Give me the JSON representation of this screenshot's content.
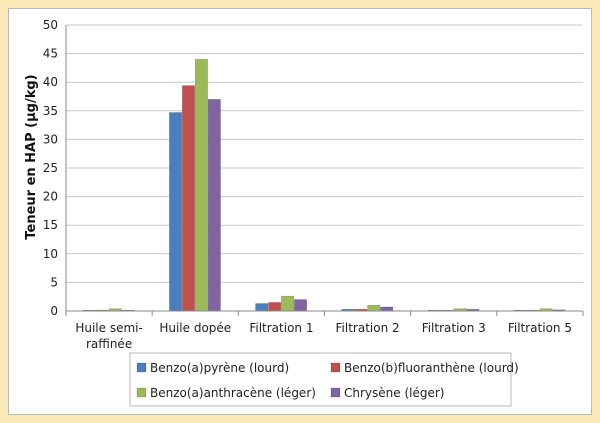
{
  "chart_data": {
    "type": "bar",
    "title": "",
    "xlabel": "",
    "ylabel": "Teneur en HAP (µg/kg)",
    "ylim": [
      0,
      50
    ],
    "yticks": [
      0,
      5,
      10,
      15,
      20,
      25,
      30,
      35,
      40,
      45,
      50
    ],
    "grid": true,
    "legend_position": "bottom",
    "categories": [
      [
        "Huile semi-",
        "raffinée"
      ],
      [
        "Huile dopée"
      ],
      [
        "Filtration 1"
      ],
      [
        "Filtration 2"
      ],
      [
        "Filtration 3"
      ],
      [
        "Filtration 5"
      ]
    ],
    "series": [
      {
        "name": "Benzo(a)pyrène (lourd)",
        "color": "#4a7ebf",
        "values": [
          0.1,
          34.7,
          1.3,
          0.3,
          0.1,
          0.1
        ]
      },
      {
        "name": "Benzo(b)fluoranthène (lourd)",
        "color": "#c0504d",
        "values": [
          0.05,
          39.4,
          1.5,
          0.3,
          0.1,
          0.05
        ]
      },
      {
        "name": "Benzo(a)anthracène (léger)",
        "color": "#9bbb59",
        "values": [
          0.4,
          44.0,
          2.6,
          1.0,
          0.4,
          0.4
        ]
      },
      {
        "name": "Chrysène (léger)",
        "color": "#8064a2",
        "values": [
          0.15,
          37.0,
          2.0,
          0.7,
          0.3,
          0.2
        ]
      }
    ]
  }
}
